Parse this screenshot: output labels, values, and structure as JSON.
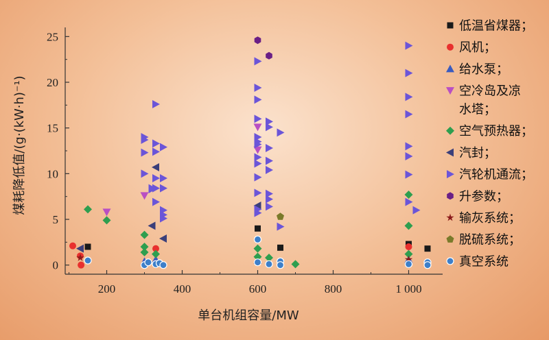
{
  "chart_data": {
    "type": "scatter",
    "xlabel": "单台机组容量/MW",
    "ylabel": "煤耗降低值/(g·(kW·h)⁻¹)",
    "xlim": [
      90,
      1090
    ],
    "ylim": [
      -1,
      26
    ],
    "x_ticks": [
      200,
      400,
      600,
      800,
      1000
    ],
    "x_tick_labels": [
      "200",
      "400",
      "600",
      "800",
      "1 000"
    ],
    "y_ticks": [
      0,
      5,
      10,
      15,
      20,
      25
    ],
    "y_tick_labels": [
      "0",
      "5",
      "10",
      "15",
      "20",
      "25"
    ],
    "grid": false,
    "legend_position": "right",
    "series": [
      {
        "name": "低温省煤器；",
        "marker": "square",
        "color": "#1a1a1a",
        "points": [
          [
            150,
            2
          ],
          [
            600,
            4
          ],
          [
            660,
            1.9
          ],
          [
            1000,
            2.3
          ],
          [
            1050,
            1.8
          ]
        ]
      },
      {
        "name": "风机；",
        "marker": "circle",
        "color": "#e8302e",
        "points": [
          [
            110,
            2.1
          ],
          [
            130,
            1
          ],
          [
            132,
            0
          ],
          [
            330,
            1.8
          ],
          [
            1000,
            2
          ]
        ]
      },
      {
        "name": "给水泵；",
        "marker": "triangle-up",
        "color": "#3a5bbf",
        "points": [
          [
            300,
            0.4
          ],
          [
            330,
            0.6
          ],
          [
            600,
            0.5
          ],
          [
            1000,
            0.6
          ]
        ]
      },
      {
        "name": "空冷岛及凉\n水塔；",
        "marker": "triangle-down",
        "color": "#b94fc3",
        "points": [
          [
            200,
            5.8
          ],
          [
            300,
            7.6
          ],
          [
            600,
            15.1
          ],
          [
            600,
            12.6
          ]
        ]
      },
      {
        "name": "空气预热器；",
        "marker": "diamond",
        "color": "#2e9e4f",
        "points": [
          [
            150,
            6.1
          ],
          [
            200,
            4.9
          ],
          [
            300,
            3.3
          ],
          [
            300,
            2
          ],
          [
            300,
            1.4
          ],
          [
            330,
            1.2
          ],
          [
            600,
            1.8
          ],
          [
            600,
            0.9
          ],
          [
            630,
            0.8
          ],
          [
            700,
            0.1
          ],
          [
            1000,
            7.7
          ],
          [
            1000,
            4.3
          ],
          [
            1000,
            1.2
          ]
        ]
      },
      {
        "name": "汽封；",
        "marker": "triangle-left",
        "color": "#3b3f7a",
        "points": [
          [
            130,
            1.8
          ],
          [
            320,
            4.3
          ],
          [
            330,
            10.7
          ],
          [
            350,
            2.9
          ],
          [
            600,
            6.5
          ]
        ]
      },
      {
        "name": "汽轮机通流；",
        "marker": "triangle-right",
        "color": "#6b55d8",
        "points": [
          [
            300,
            14
          ],
          [
            300,
            13.7
          ],
          [
            300,
            12.3
          ],
          [
            300,
            10
          ],
          [
            320,
            8.4
          ],
          [
            320,
            8.3
          ],
          [
            330,
            17.6
          ],
          [
            330,
            13.3
          ],
          [
            330,
            12.4
          ],
          [
            330,
            9.5
          ],
          [
            330,
            8.4
          ],
          [
            330,
            6.9
          ],
          [
            350,
            12.9
          ],
          [
            350,
            9.5
          ],
          [
            350,
            8.4
          ],
          [
            350,
            6
          ],
          [
            350,
            5.5
          ],
          [
            350,
            5.1
          ],
          [
            600,
            22.3
          ],
          [
            600,
            19.4
          ],
          [
            600,
            18.1
          ],
          [
            600,
            16
          ],
          [
            600,
            14
          ],
          [
            600,
            13.5
          ],
          [
            600,
            13.2
          ],
          [
            600,
            11.8
          ],
          [
            600,
            11.1
          ],
          [
            600,
            9.6
          ],
          [
            600,
            7.9
          ],
          [
            600,
            6.1
          ],
          [
            600,
            5.7
          ],
          [
            630,
            15.7
          ],
          [
            630,
            15.1
          ],
          [
            630,
            12.8
          ],
          [
            630,
            11.4
          ],
          [
            630,
            10.4
          ],
          [
            630,
            7.8
          ],
          [
            630,
            7.2
          ],
          [
            630,
            6.4
          ],
          [
            660,
            14.5
          ],
          [
            660,
            4.2
          ],
          [
            1000,
            24
          ],
          [
            1000,
            21
          ],
          [
            1000,
            18.4
          ],
          [
            1000,
            16.5
          ],
          [
            1000,
            13
          ],
          [
            1000,
            11.9
          ],
          [
            1000,
            9.9
          ],
          [
            1000,
            6.9
          ],
          [
            1020,
            6
          ]
        ]
      },
      {
        "name": "升参数；",
        "marker": "hexagon",
        "color": "#6a1f86",
        "points": [
          [
            600,
            24.6
          ],
          [
            630,
            22.9
          ]
        ]
      },
      {
        "name": "输灰系统；",
        "marker": "star",
        "color": "#8b1a1a",
        "points": [
          [
            130,
            0.8
          ],
          [
            300,
            0
          ],
          [
            1000,
            0.6
          ]
        ]
      },
      {
        "name": "脱硫系统；",
        "marker": "pentagon",
        "color": "#7a7a2a",
        "points": [
          [
            660,
            5.3
          ]
        ]
      },
      {
        "name": "真空系统",
        "marker": "ball",
        "color": "#3d7fc9",
        "points": [
          [
            150,
            0.5
          ],
          [
            300,
            0
          ],
          [
            310,
            0.3
          ],
          [
            330,
            0.1
          ],
          [
            340,
            0.2
          ],
          [
            350,
            0
          ],
          [
            600,
            2.8
          ],
          [
            600,
            0.3
          ],
          [
            630,
            0.1
          ],
          [
            660,
            0.4
          ],
          [
            660,
            0
          ],
          [
            1000,
            0.1
          ],
          [
            1050,
            0.3
          ],
          [
            1050,
            0
          ]
        ]
      }
    ]
  }
}
